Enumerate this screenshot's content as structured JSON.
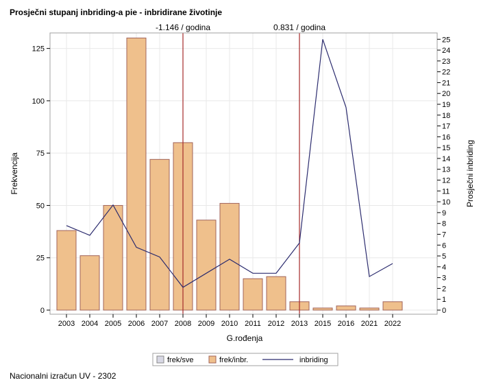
{
  "colors": {
    "bar_fill": "#efc08c",
    "bar_stroke": "#a0635a",
    "line": "#2b2b6e",
    "refline": "#a52a2a",
    "frame": "#a0a0a0",
    "grid": "#e8e8e8",
    "legend_frek_sve": "#d8d8e4"
  },
  "footer": {
    "note": "Nacionalni izračun UV - 2302"
  },
  "chart_data": {
    "type": "bar",
    "title": "Prosječni stupanj inbriding-a pie - inbridirane životinje",
    "xlabel": "G.rođenja",
    "ylabel": "Frekvencija",
    "y2label": "Prosječni inbriding",
    "categories": [
      "2003",
      "2004",
      "2005",
      "2006",
      "2007",
      "2008",
      "2009",
      "2010",
      "2011",
      "2012",
      "2013",
      "2015",
      "2016",
      "2021",
      "2022"
    ],
    "series": [
      {
        "name": "frek/inbr.",
        "axis": "left",
        "type": "bar",
        "values": [
          38,
          26,
          50,
          130,
          72,
          80,
          43,
          51,
          15,
          16,
          4,
          1,
          2,
          1,
          4
        ]
      },
      {
        "name": "inbriding",
        "axis": "right",
        "type": "line",
        "values": [
          7.8,
          6.9,
          9.7,
          5.8,
          4.9,
          2.1,
          3.4,
          4.7,
          3.4,
          3.4,
          6.2,
          25.0,
          18.7,
          3.1,
          4.3
        ]
      }
    ],
    "ylim": [
      0,
      130
    ],
    "yticks": [
      0,
      25,
      50,
      75,
      100,
      125
    ],
    "y2lim": [
      0,
      25
    ],
    "y2ticks": [
      0,
      1,
      2,
      3,
      4,
      5,
      6,
      7,
      8,
      9,
      10,
      11,
      12,
      13,
      14,
      15,
      16,
      17,
      18,
      19,
      20,
      21,
      22,
      23,
      24,
      25
    ],
    "reference_lines": [
      {
        "category": "2008",
        "label": "-1.146 / godina"
      },
      {
        "category": "2013",
        "label": "0.831 / godina"
      }
    ],
    "legend": {
      "position": "bottom",
      "items": [
        {
          "name": "frek/sve",
          "kind": "box-grey"
        },
        {
          "name": "frek/inbr.",
          "kind": "box-bar"
        },
        {
          "name": "inbriding",
          "kind": "line"
        }
      ]
    },
    "grid": true
  }
}
